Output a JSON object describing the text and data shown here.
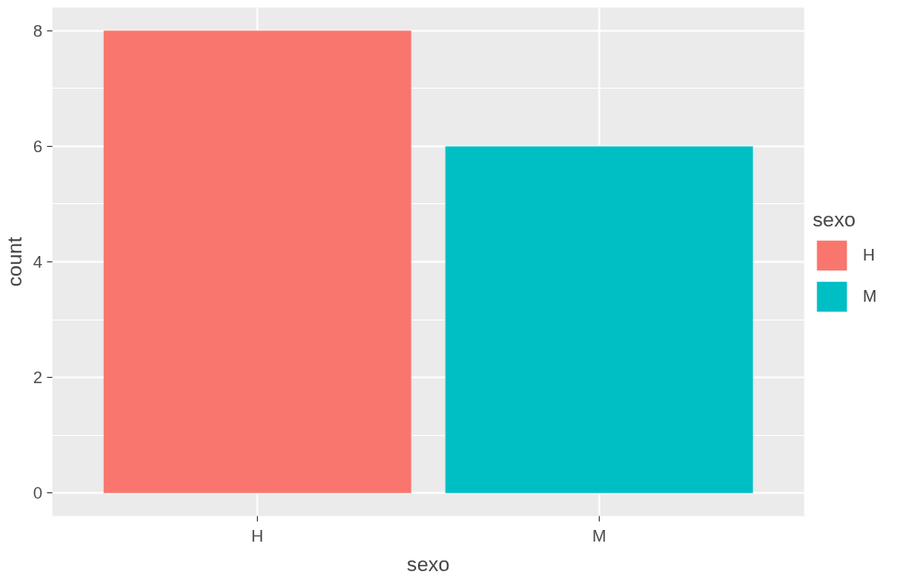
{
  "chart_data": {
    "type": "bar",
    "xlabel": "sexo",
    "ylabel": "count",
    "legend_title": "sexo",
    "categories": [
      "H",
      "M"
    ],
    "series": [
      {
        "name": "H",
        "color": "#f8766d",
        "values": [
          8,
          null
        ]
      },
      {
        "name": "M",
        "color": "#00bfc4",
        "values": [
          null,
          6
        ]
      }
    ],
    "ylim": [
      -0.4,
      8.4
    ],
    "yticks": [
      0,
      2,
      4,
      6,
      8
    ],
    "grid": true,
    "legend": "right"
  }
}
